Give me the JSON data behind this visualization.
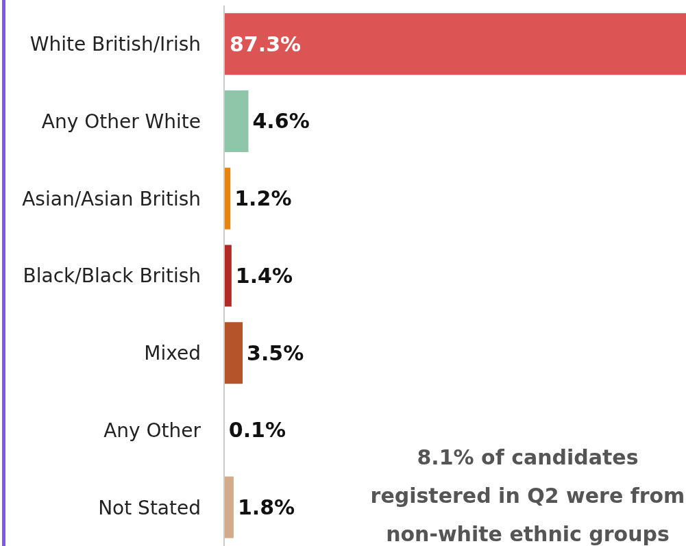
{
  "chart_data": {
    "type": "bar",
    "orientation": "horizontal",
    "categories": [
      "White British/Irish",
      "Any Other White",
      "Asian/Asian British",
      "Black/Black British",
      "Mixed",
      "Any Other",
      "Not Stated"
    ],
    "values": [
      87.3,
      4.6,
      1.2,
      1.4,
      3.5,
      0.1,
      1.8
    ],
    "colors": [
      "#dd5455",
      "#8fc6a9",
      "#e8830c",
      "#b02a26",
      "#b5532a",
      "#a5651f",
      "#d4ab8a"
    ],
    "value_labels": [
      "87.3%",
      "4.6%",
      "1.2%",
      "1.4%",
      "3.5%",
      "0.1%",
      "1.8%"
    ],
    "grid": false,
    "legend": false,
    "annotations": [
      "8.1% of candidates registered in Q2 were from non-white ethnic groups"
    ]
  }
}
